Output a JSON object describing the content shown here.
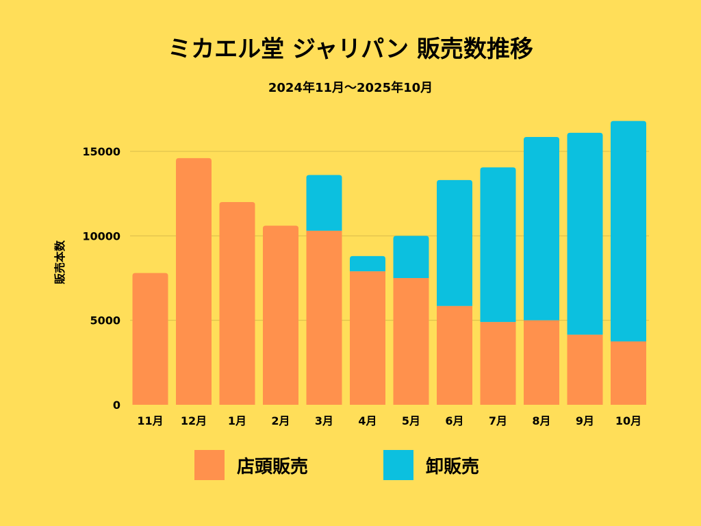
{
  "chart_data": {
    "type": "bar",
    "stacked": true,
    "title": "ミカエル堂 ジャリパン 販売数推移",
    "subtitle": "2024年11月〜2025年10月",
    "xlabel": "",
    "ylabel": "販売本数",
    "ylim": [
      0,
      17000
    ],
    "yticks": [
      0,
      5000,
      10000,
      15000
    ],
    "grid": true,
    "legend_position": "bottom",
    "categories": [
      "11月",
      "12月",
      "1月",
      "2月",
      "3月",
      "4月",
      "5月",
      "6月",
      "7月",
      "8月",
      "9月",
      "10月"
    ],
    "series": [
      {
        "name": "店頭販売",
        "color": "#FF914D",
        "values": [
          7800,
          14600,
          12000,
          10600,
          10300,
          7900,
          7500,
          5850,
          4900,
          5000,
          4150,
          3750
        ]
      },
      {
        "name": "卸販売",
        "color": "#0CC0DF",
        "values": [
          0,
          0,
          0,
          0,
          3300,
          900,
          2500,
          7450,
          9150,
          10850,
          11950,
          13050
        ]
      }
    ]
  }
}
